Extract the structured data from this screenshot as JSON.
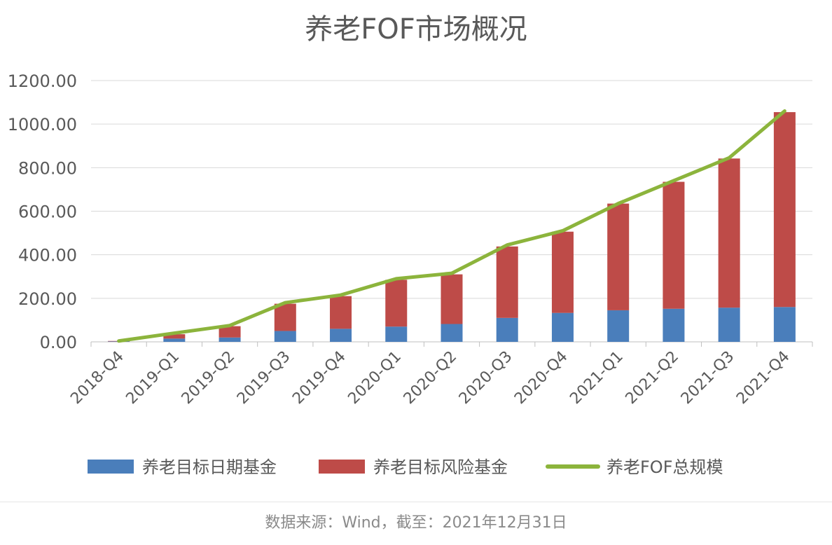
{
  "chart_data": {
    "type": "bar",
    "title": "养老FOF市场概况",
    "stacked": true,
    "categories": [
      "2018-Q4",
      "2019-Q1",
      "2019-Q2",
      "2019-Q3",
      "2019-Q4",
      "2020-Q1",
      "2020-Q2",
      "2020-Q3",
      "2020-Q4",
      "2021-Q1",
      "2021-Q2",
      "2021-Q3",
      "2021-Q4"
    ],
    "series": [
      {
        "name": "养老目标日期基金",
        "kind": "bar",
        "color": "#4a7ebb",
        "values": [
          2,
          15,
          20,
          50,
          60,
          70,
          82,
          110,
          133,
          145,
          152,
          157,
          160
        ]
      },
      {
        "name": "养老目标风险基金",
        "kind": "bar",
        "color": "#be4b48",
        "values": [
          2,
          20,
          52,
          125,
          150,
          215,
          228,
          328,
          373,
          490,
          583,
          685,
          895
        ]
      },
      {
        "name": "养老FOF总规模",
        "kind": "line",
        "color": "#8cb43c",
        "values": [
          4,
          40,
          75,
          180,
          215,
          290,
          315,
          445,
          510,
          635,
          740,
          845,
          1060
        ]
      }
    ],
    "ylim": [
      0,
      1200
    ],
    "yticks": [
      "0.00",
      "200.00",
      "400.00",
      "600.00",
      "800.00",
      "1000.00",
      "1200.00"
    ],
    "grid": true,
    "legend_position": "bottom"
  },
  "footer": {
    "source_text": "数据来源：Wind，截至：2021年12月31日"
  }
}
